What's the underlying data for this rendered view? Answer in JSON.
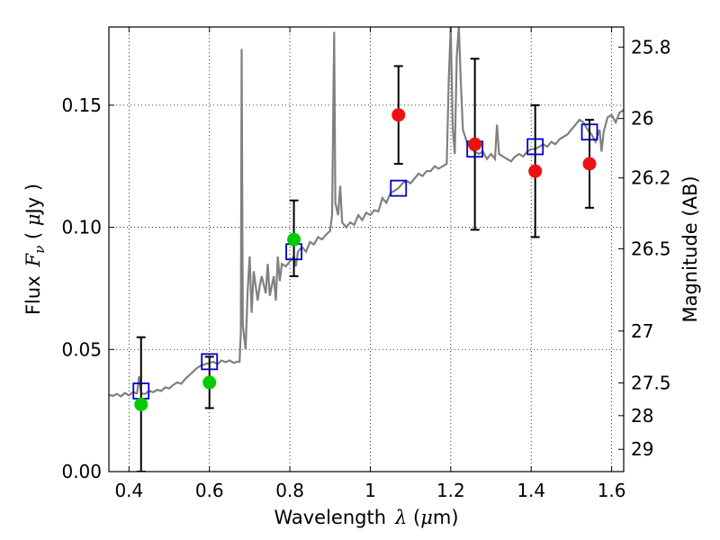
{
  "chart_data": {
    "type": "scatter",
    "xlabel": "Wavelength",
    "xlabel_symbol": "λ",
    "xlabel_unit_open": " (",
    "xlabel_unit_mu": "μ",
    "xlabel_unit_close": "m)",
    "ylabel": "Flux",
    "ylabel_symbol_F": "F",
    "ylabel_symbol_sub": "ν",
    "ylabel_unit_open": " ( ",
    "ylabel_unit_mu": "μ",
    "ylabel_unit_close": "Jy )",
    "y2label": "Magnitude (AB)",
    "xlim": [
      0.35,
      1.63
    ],
    "ylim": [
      0.0,
      0.182
    ],
    "grid": true,
    "xticks": [
      {
        "value": 0.4,
        "label": "0.4"
      },
      {
        "value": 0.6,
        "label": "0.6"
      },
      {
        "value": 0.8,
        "label": "0.8"
      },
      {
        "value": 1.0,
        "label": "1"
      },
      {
        "value": 1.2,
        "label": "1.2"
      },
      {
        "value": 1.4,
        "label": "1.4"
      },
      {
        "value": 1.6,
        "label": "1.6"
      }
    ],
    "yticks": [
      {
        "value": 0.0,
        "label": "0.00"
      },
      {
        "value": 0.05,
        "label": "0.05"
      },
      {
        "value": 0.1,
        "label": "0.10"
      },
      {
        "value": 0.15,
        "label": "0.15"
      }
    ],
    "y2ticks": [
      {
        "mag": 25.8,
        "label": "25.8"
      },
      {
        "mag": 26.0,
        "label": "26"
      },
      {
        "mag": 26.2,
        "label": "26.2"
      },
      {
        "mag": 26.5,
        "label": "26.5"
      },
      {
        "mag": 27.0,
        "label": "27"
      },
      {
        "mag": 27.5,
        "label": "27.5"
      },
      {
        "mag": 28.0,
        "label": "28"
      },
      {
        "mag": 29.0,
        "label": "29"
      }
    ],
    "model_spectrum": {
      "color": "#808080",
      "points": [
        [
          0.35,
          0.0315
        ],
        [
          0.36,
          0.031
        ],
        [
          0.37,
          0.0318
        ],
        [
          0.38,
          0.0308
        ],
        [
          0.39,
          0.0322
        ],
        [
          0.4,
          0.0312
        ],
        [
          0.41,
          0.0325
        ],
        [
          0.42,
          0.032
        ],
        [
          0.425,
          0.039
        ],
        [
          0.43,
          0.032
        ],
        [
          0.44,
          0.0318
        ],
        [
          0.45,
          0.033
        ],
        [
          0.46,
          0.0325
        ],
        [
          0.47,
          0.0335
        ],
        [
          0.48,
          0.033
        ],
        [
          0.49,
          0.0345
        ],
        [
          0.5,
          0.034
        ],
        [
          0.51,
          0.0355
        ],
        [
          0.52,
          0.0365
        ],
        [
          0.53,
          0.036
        ],
        [
          0.54,
          0.038
        ],
        [
          0.55,
          0.0395
        ],
        [
          0.56,
          0.041
        ],
        [
          0.57,
          0.0425
        ],
        [
          0.58,
          0.0435
        ],
        [
          0.59,
          0.044
        ],
        [
          0.6,
          0.0445
        ],
        [
          0.61,
          0.045
        ],
        [
          0.62,
          0.044
        ],
        [
          0.63,
          0.0455
        ],
        [
          0.64,
          0.0448
        ],
        [
          0.65,
          0.0455
        ],
        [
          0.66,
          0.0445
        ],
        [
          0.67,
          0.045
        ],
        [
          0.675,
          0.045
        ],
        [
          0.678,
          0.057
        ],
        [
          0.68,
          0.173
        ],
        [
          0.683,
          0.06
        ],
        [
          0.69,
          0.05
        ],
        [
          0.695,
          0.074
        ],
        [
          0.7,
          0.088
        ],
        [
          0.705,
          0.065
        ],
        [
          0.71,
          0.082
        ],
        [
          0.72,
          0.07
        ],
        [
          0.725,
          0.076
        ],
        [
          0.73,
          0.08
        ],
        [
          0.74,
          0.073
        ],
        [
          0.745,
          0.085
        ],
        [
          0.75,
          0.072
        ],
        [
          0.76,
          0.08
        ],
        [
          0.765,
          0.07
        ],
        [
          0.77,
          0.088
        ],
        [
          0.775,
          0.078
        ],
        [
          0.78,
          0.085
        ],
        [
          0.79,
          0.084
        ],
        [
          0.8,
          0.086
        ],
        [
          0.81,
          0.088
        ],
        [
          0.815,
          0.084
        ],
        [
          0.82,
          0.09
        ],
        [
          0.83,
          0.092
        ],
        [
          0.84,
          0.09
        ],
        [
          0.85,
          0.094
        ],
        [
          0.86,
          0.093
        ],
        [
          0.87,
          0.096
        ],
        [
          0.88,
          0.095
        ],
        [
          0.89,
          0.097
        ],
        [
          0.9,
          0.0985
        ],
        [
          0.905,
          0.105
        ],
        [
          0.91,
          0.18
        ],
        [
          0.913,
          0.11
        ],
        [
          0.92,
          0.105
        ],
        [
          0.925,
          0.117
        ],
        [
          0.93,
          0.102
        ],
        [
          0.94,
          0.1
        ],
        [
          0.95,
          0.102
        ],
        [
          0.96,
          0.101
        ],
        [
          0.97,
          0.105
        ],
        [
          0.98,
          0.103
        ],
        [
          0.99,
          0.106
        ],
        [
          1.0,
          0.105
        ],
        [
          1.01,
          0.107
        ],
        [
          1.02,
          0.1065
        ],
        [
          1.03,
          0.112
        ],
        [
          1.04,
          0.11
        ],
        [
          1.05,
          0.114
        ],
        [
          1.06,
          0.115
        ],
        [
          1.07,
          0.116
        ],
        [
          1.08,
          0.118
        ],
        [
          1.09,
          0.119
        ],
        [
          1.1,
          0.118
        ],
        [
          1.11,
          0.12
        ],
        [
          1.12,
          0.122
        ],
        [
          1.13,
          0.121
        ],
        [
          1.14,
          0.123
        ],
        [
          1.15,
          0.123
        ],
        [
          1.16,
          0.125
        ],
        [
          1.17,
          0.124
        ],
        [
          1.18,
          0.125
        ],
        [
          1.19,
          0.126
        ],
        [
          1.195,
          0.16
        ],
        [
          1.2,
          0.182
        ],
        [
          1.205,
          0.14
        ],
        [
          1.21,
          0.13
        ],
        [
          1.215,
          0.17
        ],
        [
          1.22,
          0.182
        ],
        [
          1.225,
          0.16
        ],
        [
          1.23,
          0.14
        ],
        [
          1.24,
          0.135
        ],
        [
          1.25,
          0.132
        ],
        [
          1.26,
          0.131
        ],
        [
          1.27,
          0.13
        ],
        [
          1.28,
          0.131
        ],
        [
          1.29,
          0.128
        ],
        [
          1.3,
          0.13
        ],
        [
          1.31,
          0.128
        ],
        [
          1.315,
          0.142
        ],
        [
          1.32,
          0.13
        ],
        [
          1.33,
          0.129
        ],
        [
          1.34,
          0.128
        ],
        [
          1.35,
          0.127
        ],
        [
          1.36,
          0.129
        ],
        [
          1.37,
          0.13
        ],
        [
          1.38,
          0.129
        ],
        [
          1.39,
          0.131
        ],
        [
          1.4,
          0.132
        ],
        [
          1.41,
          0.132
        ],
        [
          1.42,
          0.133
        ],
        [
          1.43,
          0.134
        ],
        [
          1.44,
          0.133
        ],
        [
          1.45,
          0.135
        ],
        [
          1.46,
          0.134
        ],
        [
          1.47,
          0.136
        ],
        [
          1.48,
          0.137
        ],
        [
          1.49,
          0.138
        ],
        [
          1.5,
          0.14
        ],
        [
          1.51,
          0.142
        ],
        [
          1.52,
          0.144
        ],
        [
          1.53,
          0.143
        ],
        [
          1.54,
          0.14
        ],
        [
          1.55,
          0.138
        ],
        [
          1.56,
          0.135
        ],
        [
          1.57,
          0.14
        ],
        [
          1.575,
          0.131
        ],
        [
          1.58,
          0.139
        ],
        [
          1.59,
          0.145
        ],
        [
          1.6,
          0.146
        ],
        [
          1.61,
          0.143
        ],
        [
          1.62,
          0.147
        ],
        [
          1.63,
          0.148
        ]
      ]
    },
    "model_bands": {
      "color": "#0000cc",
      "points": [
        {
          "x": 0.43,
          "y": 0.033
        },
        {
          "x": 0.6,
          "y": 0.045
        },
        {
          "x": 0.81,
          "y": 0.09
        },
        {
          "x": 1.07,
          "y": 0.116
        },
        {
          "x": 1.26,
          "y": 0.132
        },
        {
          "x": 1.41,
          "y": 0.133
        },
        {
          "x": 1.545,
          "y": 0.139
        }
      ]
    },
    "observed": {
      "points": [
        {
          "x": 0.43,
          "y": 0.0275,
          "err_low": 0.0,
          "err_high": 0.055,
          "color": "#00cc00"
        },
        {
          "x": 0.6,
          "y": 0.0365,
          "err_low": 0.026,
          "err_high": 0.047,
          "color": "#00cc00"
        },
        {
          "x": 0.81,
          "y": 0.095,
          "err_low": 0.08,
          "err_high": 0.111,
          "color": "#00cc00"
        },
        {
          "x": 1.07,
          "y": 0.146,
          "err_low": 0.126,
          "err_high": 0.166,
          "color": "#ee1111"
        },
        {
          "x": 1.26,
          "y": 0.134,
          "err_low": 0.099,
          "err_high": 0.169,
          "color": "#ee1111"
        },
        {
          "x": 1.41,
          "y": 0.123,
          "err_low": 0.096,
          "err_high": 0.15,
          "color": "#ee1111"
        },
        {
          "x": 1.545,
          "y": 0.126,
          "err_low": 0.108,
          "err_high": 0.144,
          "color": "#ee1111"
        }
      ]
    }
  }
}
